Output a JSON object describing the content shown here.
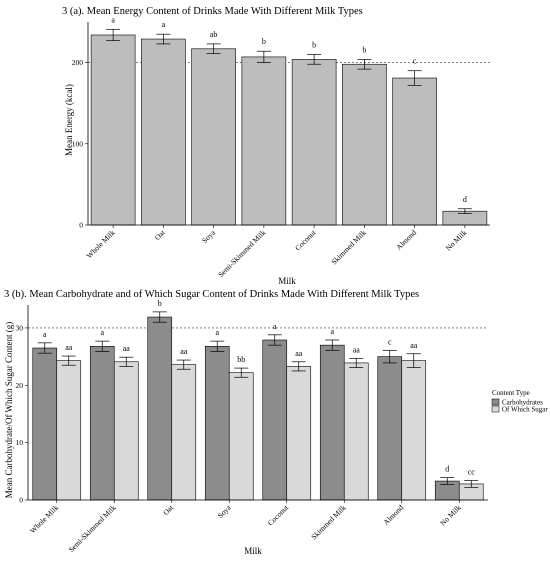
{
  "chart_data": [
    {
      "type": "bar",
      "title": "3 (a). Mean Energy Content of Drinks Made With Different Milk Types",
      "xlabel": "Milk",
      "ylabel": "Mean Energy (kcal)",
      "ylim": [
        0,
        250
      ],
      "yticks": [
        0,
        100,
        200
      ],
      "reference_line": 200,
      "categories": [
        "Whole Milk",
        "Oat",
        "Soya",
        "Semi-Skimmed Milk",
        "Coconut",
        "Skimmed Milk",
        "Almond",
        "No Milk"
      ],
      "values": [
        234,
        229,
        217,
        207,
        204,
        198,
        181,
        17
      ],
      "errors": [
        7,
        6,
        6,
        7,
        6,
        6,
        9,
        3
      ],
      "labels": [
        "a",
        "a",
        "ab",
        "b",
        "b",
        "b",
        "c",
        "d"
      ],
      "colors": {
        "bar": "#bdbdbd"
      }
    },
    {
      "type": "bar",
      "title": "3 (b). Mean Carbohydrate and of Which Sugar Content of Drinks Made With Different Milk Types",
      "xlabel": "Milk",
      "ylabel": "Mean Carbohydrate/Of Which Sugar Content (g)",
      "ylim": [
        0,
        34
      ],
      "yticks": [
        0,
        10,
        20,
        30
      ],
      "reference_line": 30,
      "categories": [
        "Whole Milk",
        "Semi-Skimmed Milk",
        "Oat",
        "Soya",
        "Coconut",
        "Skimmed Milk",
        "Almond",
        "No Milk"
      ],
      "legend": {
        "title": "Content Type",
        "position": "right"
      },
      "series": [
        {
          "name": "Carbohydrates",
          "color": "#8c8c8c",
          "values": [
            26.5,
            26.8,
            31.9,
            26.8,
            27.9,
            27.0,
            25.0,
            3.3
          ],
          "errors": [
            0.9,
            0.9,
            0.9,
            0.9,
            0.9,
            0.9,
            1.1,
            0.6
          ],
          "labels": [
            "a",
            "a",
            "b",
            "a",
            "a",
            "a",
            "c",
            "d"
          ]
        },
        {
          "name": "Of Which Sugar",
          "color": "#d9d9d9",
          "values": [
            24.3,
            24.1,
            23.6,
            22.2,
            23.3,
            23.9,
            24.3,
            2.8
          ],
          "errors": [
            0.8,
            0.8,
            0.8,
            0.8,
            0.8,
            0.8,
            1.2,
            0.6
          ],
          "labels": [
            "aa",
            "aa",
            "aa",
            "bb",
            "aa",
            "aa",
            "aa",
            "cc"
          ]
        }
      ]
    }
  ]
}
